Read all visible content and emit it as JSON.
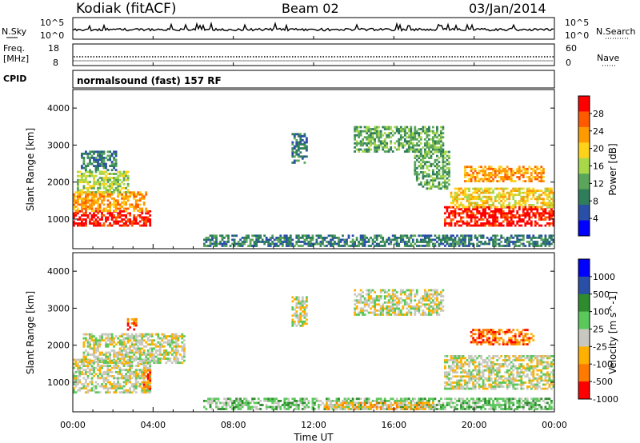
{
  "header": {
    "station": "Kodiak (fitACF)",
    "beam": "Beam 02",
    "date": "03/Jan/2014"
  },
  "noise_panel": {
    "left_label": "N.Sky",
    "right_label": "N.Search",
    "left_ticks": [
      "10^5",
      "10^0"
    ],
    "right_ticks": [
      "10^5",
      "10^0"
    ]
  },
  "freq_panel": {
    "left_label_1": "Freq.",
    "left_label_2": "[MHz]",
    "right_label": "Nave",
    "left_ticks": [
      "18",
      "8"
    ],
    "right_ticks": [
      "60",
      "0"
    ]
  },
  "cpid_panel": {
    "left_label": "CPID",
    "text": "normalsound (fast) 157 RF"
  },
  "colors": {
    "power_scale": [
      "#0000ff",
      "#2a4fa6",
      "#2e7d5b",
      "#5aa55a",
      "#a8d84a",
      "#ffd21a",
      "#ff9a00",
      "#ff5a00",
      "#ff0000"
    ],
    "velocity_scale": [
      "#ff0000",
      "#ff7a00",
      "#ffb000",
      "#c8c8c0",
      "#5ac85a",
      "#2e8b2e",
      "#2a4fa6",
      "#0000ff"
    ]
  },
  "chart_data": [
    {
      "type": "heatmap",
      "name": "power",
      "ylabel": "Slant Range [km]",
      "y_ticks": [
        "1000",
        "2000",
        "3000",
        "4000"
      ],
      "y_tick_values": [
        1000,
        2000,
        3000,
        4000
      ],
      "ylim": [
        200,
        4500
      ],
      "colorbar_label": "Power [dB]",
      "colorbar_ticks": [
        "4",
        "8",
        "12",
        "16",
        "20",
        "24",
        "28"
      ],
      "colorbar_range": [
        0,
        32
      ],
      "x_tick_values": [
        0,
        4,
        8,
        12,
        16,
        20,
        24
      ],
      "xlim": [
        0,
        24
      ],
      "regions": [
        {
          "t0": 0.0,
          "t1": 3.9,
          "r0": 800,
          "r1": 1200,
          "level": 8
        },
        {
          "t0": 0.0,
          "t1": 3.7,
          "r0": 1200,
          "r1": 1700,
          "level": 6
        },
        {
          "t0": 0.2,
          "t1": 2.8,
          "r0": 1700,
          "r1": 2300,
          "level": 4
        },
        {
          "t0": 0.4,
          "t1": 2.2,
          "r0": 2300,
          "r1": 2800,
          "level": 2
        },
        {
          "t0": 10.9,
          "t1": 11.6,
          "r0": 2500,
          "r1": 3300,
          "level": 2
        },
        {
          "t0": 14.0,
          "t1": 18.5,
          "r0": 2800,
          "r1": 3500,
          "level": 3
        },
        {
          "t0": 17.0,
          "t1": 18.8,
          "r0": 1800,
          "r1": 2800,
          "level": 3
        },
        {
          "t0": 18.5,
          "t1": 24.0,
          "r0": 800,
          "r1": 1300,
          "level": 8
        },
        {
          "t0": 18.8,
          "t1": 24.0,
          "r0": 1300,
          "r1": 1800,
          "level": 5
        },
        {
          "t0": 19.5,
          "t1": 23.5,
          "r0": 2000,
          "r1": 2400,
          "level": 6
        },
        {
          "t0": 6.5,
          "t1": 24.0,
          "r0": 250,
          "r1": 550,
          "level": 2
        }
      ]
    },
    {
      "type": "heatmap",
      "name": "velocity",
      "ylabel": "Slant Range [km]",
      "y_ticks": [
        "1000",
        "2000",
        "3000",
        "4000"
      ],
      "y_tick_values": [
        1000,
        2000,
        3000,
        4000
      ],
      "ylim": [
        200,
        4500
      ],
      "colorbar_label": "Velocity [m s^-1]",
      "colorbar_ticks": [
        "1000",
        "500",
        "100",
        "25",
        "-25",
        "-100",
        "-500",
        "-1000"
      ],
      "x_tick_values": [
        0,
        4,
        8,
        12,
        16,
        20,
        24
      ],
      "xlim": [
        0,
        24
      ],
      "regions": [
        {
          "t0": 0.0,
          "t1": 3.9,
          "r0": 700,
          "r1": 1600,
          "level": 3
        },
        {
          "t0": 0.5,
          "t1": 5.5,
          "r0": 1500,
          "r1": 2300,
          "level": 3
        },
        {
          "t0": 3.5,
          "t1": 3.9,
          "r0": 800,
          "r1": 1300,
          "level": 1
        },
        {
          "t0": 2.7,
          "t1": 3.2,
          "r0": 2400,
          "r1": 2700,
          "level": 1
        },
        {
          "t0": 10.9,
          "t1": 11.6,
          "r0": 2500,
          "r1": 3300,
          "level": 3
        },
        {
          "t0": 14.0,
          "t1": 18.5,
          "r0": 2800,
          "r1": 3500,
          "level": 3
        },
        {
          "t0": 18.5,
          "t1": 24.0,
          "r0": 800,
          "r1": 1700,
          "level": 3
        },
        {
          "t0": 19.8,
          "t1": 23.0,
          "r0": 2000,
          "r1": 2400,
          "level": 1
        },
        {
          "t0": 6.5,
          "t1": 24.0,
          "r0": 250,
          "r1": 550,
          "level": 4
        },
        {
          "t0": 12.5,
          "t1": 18.0,
          "r0": 250,
          "r1": 450,
          "level": 2
        }
      ]
    }
  ],
  "x_axis": {
    "tick_labels": [
      "00:00",
      "04:00",
      "08:00",
      "12:00",
      "16:00",
      "20:00",
      "00:00"
    ],
    "label": "Time UT"
  }
}
